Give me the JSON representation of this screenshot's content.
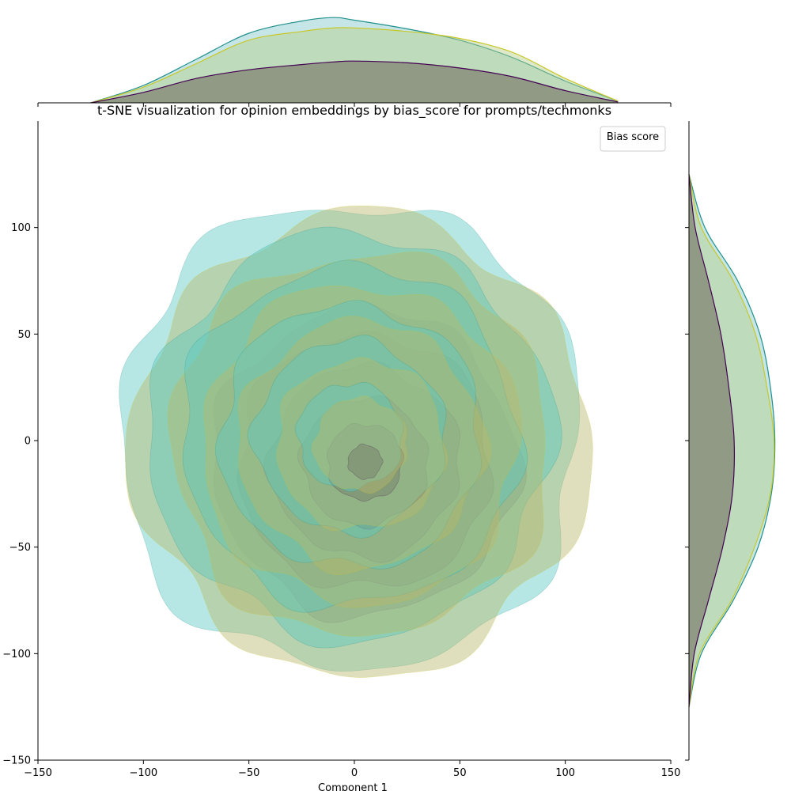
{
  "chart_data": {
    "type": "kde-joint",
    "title": "t-SNE visualization for opinion embeddings by bias_score for prompts/techmonks",
    "xlabel": "Component 1",
    "ylabel": "",
    "xlim": [
      -150,
      150
    ],
    "ylim": [
      -150,
      150
    ],
    "xticks": [
      -150,
      -100,
      -50,
      0,
      50,
      100,
      150
    ],
    "yticks": [
      -150,
      -100,
      -50,
      0,
      50,
      100
    ],
    "grid": false,
    "legend": {
      "title": "Bias score",
      "placement": "upper right",
      "entries": []
    },
    "series": [
      {
        "color": "#440154",
        "fill": "#6b6a5e",
        "center": [
          5,
          -10
        ],
        "radii": [
          0,
          8,
          18,
          30,
          45,
          60,
          72
        ]
      },
      {
        "color": "#21908d",
        "fill": "#5ec9c4",
        "center": [
          -2,
          2
        ],
        "radii": [
          0,
          25,
          45,
          62,
          80,
          95,
          110
        ]
      },
      {
        "color": "#c8c82a",
        "fill": "#b7b86d",
        "center": [
          3,
          -2
        ],
        "radii": [
          0,
          22,
          40,
          58,
          75,
          90,
          108
        ]
      }
    ],
    "marginal_x": {
      "x": [
        -125,
        -100,
        -75,
        -50,
        -25,
        -10,
        0,
        25,
        50,
        75,
        100,
        125
      ],
      "series": [
        {
          "color": "#440154",
          "density": [
            0.0,
            0.12,
            0.28,
            0.38,
            0.44,
            0.47,
            0.48,
            0.46,
            0.4,
            0.3,
            0.14,
            0.01
          ]
        },
        {
          "color": "#21908d",
          "density": [
            0.0,
            0.2,
            0.5,
            0.8,
            0.94,
            0.98,
            0.95,
            0.85,
            0.72,
            0.52,
            0.25,
            0.02
          ]
        },
        {
          "color": "#c8c82a",
          "density": [
            0.0,
            0.18,
            0.45,
            0.72,
            0.82,
            0.86,
            0.86,
            0.82,
            0.74,
            0.58,
            0.28,
            0.02
          ]
        }
      ]
    },
    "marginal_y": {
      "y": [
        -125,
        -100,
        -75,
        -50,
        -25,
        0,
        25,
        50,
        75,
        100,
        125
      ],
      "series": [
        {
          "color": "#440154",
          "density": [
            0.0,
            0.06,
            0.22,
            0.38,
            0.49,
            0.51,
            0.45,
            0.36,
            0.22,
            0.07,
            0.0
          ]
        },
        {
          "color": "#21908d",
          "density": [
            0.0,
            0.14,
            0.5,
            0.78,
            0.93,
            0.97,
            0.92,
            0.8,
            0.55,
            0.18,
            0.0
          ]
        },
        {
          "color": "#c8c82a",
          "density": [
            0.0,
            0.12,
            0.48,
            0.74,
            0.92,
            0.96,
            0.88,
            0.75,
            0.5,
            0.14,
            0.0
          ]
        }
      ]
    }
  }
}
